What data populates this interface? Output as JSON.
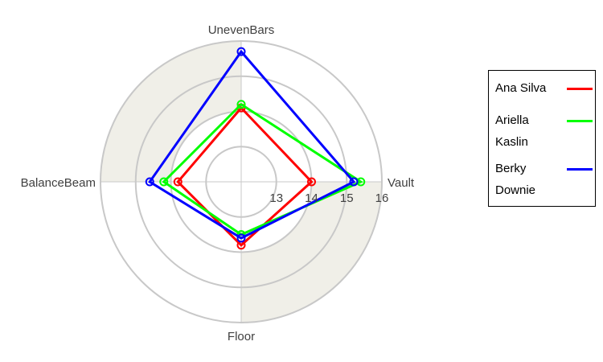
{
  "chart_data": {
    "type": "radar",
    "axes": [
      "UnevenBars",
      "Vault",
      "Floor",
      "BalanceBeam"
    ],
    "ticks": [
      "13",
      "14",
      "15",
      "16"
    ],
    "range": [
      12,
      16
    ],
    "grid": "circular",
    "legend_position": "right",
    "series": [
      {
        "name": "Ana Silva",
        "color": "#ff0000",
        "values": [
          14.1,
          14.0,
          13.8,
          13.8
        ]
      },
      {
        "name": "Ariella Kaslin",
        "color": "#00ff00",
        "values": [
          14.2,
          15.4,
          13.5,
          14.2
        ]
      },
      {
        "name": "Berky Downie",
        "color": "#0000ff",
        "values": [
          15.7,
          15.2,
          13.6,
          14.6
        ]
      }
    ]
  }
}
